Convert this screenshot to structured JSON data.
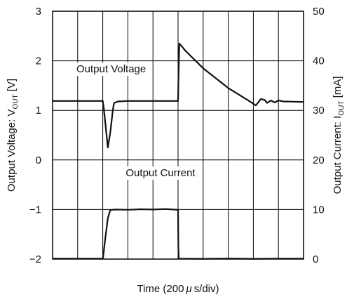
{
  "chart_data": {
    "type": "line",
    "xlabel_prefix": "Time (200",
    "xlabel_mu": "μ",
    "xlabel_suffix": "s/div)",
    "x_unit": "div (200 μs/div)",
    "xlim": [
      0,
      10
    ],
    "grid": true,
    "left_axis": {
      "label_prefix": "Output Voltage: V",
      "label_sub": "OUT",
      "label_suffix": " [V]",
      "ylim": [
        -2,
        3
      ],
      "ticks": [
        "3",
        "2",
        "1",
        "0",
        "−1",
        "−2"
      ],
      "tick_values": [
        3,
        2,
        1,
        0,
        -1,
        -2
      ]
    },
    "right_axis": {
      "label_prefix": "Output Current: I",
      "label_sub": "OUT",
      "label_suffix": " [mA]",
      "ylim": [
        0,
        50
      ],
      "ticks": [
        "50",
        "40",
        "30",
        "20",
        "10",
        "0"
      ],
      "tick_values": [
        50,
        40,
        30,
        20,
        10,
        0
      ]
    },
    "annotations": {
      "voltage": "Output Voltage",
      "current": "Output Current"
    },
    "series": [
      {
        "name": "Output Voltage",
        "axis": "left",
        "x": [
          0,
          2.0,
          2.04,
          2.1,
          2.2,
          2.3,
          2.4,
          2.45,
          2.6,
          3,
          4,
          5.0,
          5.01,
          5.05,
          5.3,
          6.0,
          7.0,
          7.8,
          8.1,
          8.3,
          8.45,
          8.55,
          8.7,
          8.85,
          9.0,
          9.2,
          10
        ],
        "y": [
          1.19,
          1.19,
          1.05,
          0.75,
          0.25,
          0.55,
          1.0,
          1.15,
          1.18,
          1.19,
          1.19,
          1.19,
          1.5,
          2.35,
          2.2,
          1.85,
          1.45,
          1.2,
          1.1,
          1.23,
          1.21,
          1.15,
          1.2,
          1.16,
          1.2,
          1.18,
          1.17
        ]
      },
      {
        "name": "Output Current",
        "axis": "right",
        "x": [
          0,
          2.0,
          2.02,
          2.1,
          2.2,
          2.3,
          2.5,
          3,
          3.5,
          4,
          4.5,
          4.8,
          5.0,
          5.01,
          5.03,
          6,
          7,
          8,
          9,
          10
        ],
        "y": [
          0.1,
          0.1,
          0.6,
          4.2,
          8.2,
          9.9,
          10.0,
          9.95,
          10.05,
          10.0,
          10.1,
          10.0,
          9.95,
          2.5,
          0.1,
          0.05,
          0.12,
          0.05,
          0.1,
          0.08
        ]
      }
    ]
  }
}
